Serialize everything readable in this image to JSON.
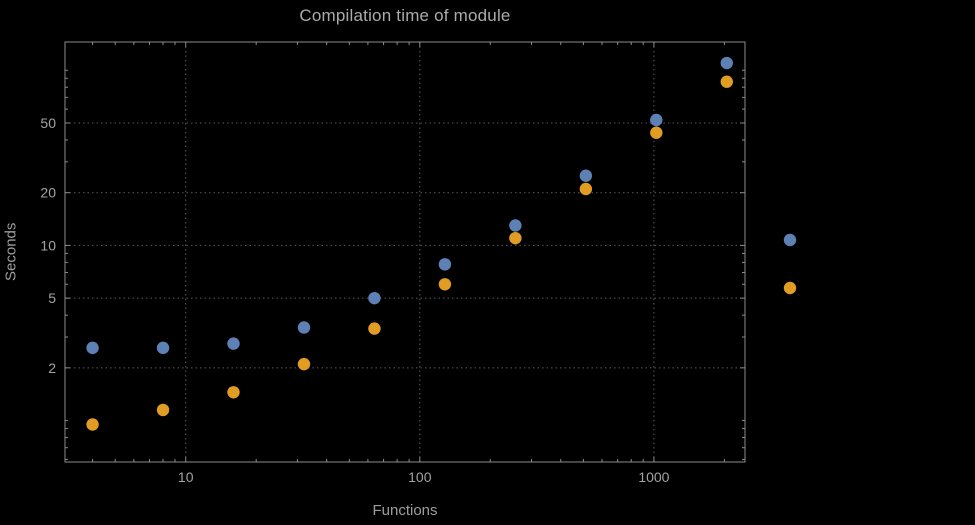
{
  "title": "Compilation time of module",
  "colors": {
    "background": "#000000",
    "frame": "#8c8c8c",
    "grid": "#5a5a5a",
    "tick_label": "#a3a3a3",
    "series_blue": "#5e81b5",
    "series_orange": "#e19c24"
  },
  "chart_data": {
    "type": "scatter",
    "title": "Compilation time of module",
    "xlabel": "Functions",
    "ylabel": "Seconds",
    "x_scale": "log",
    "y_scale": "log",
    "grid": true,
    "grid_style": "dotted",
    "xlim": [
      3.05,
      2450
    ],
    "ylim": [
      0.58,
      145
    ],
    "x": [
      4,
      8,
      16,
      32,
      64,
      128,
      256,
      512,
      1024,
      2048
    ],
    "series": [
      {
        "name": "blue",
        "color": "#5e81b5",
        "values": [
          2.6,
          2.6,
          2.75,
          3.4,
          5.0,
          7.8,
          13,
          25,
          52,
          110
        ]
      },
      {
        "name": "orange",
        "color": "#e19c24",
        "values": [
          0.95,
          1.15,
          1.45,
          2.1,
          3.35,
          6.0,
          11,
          21,
          44,
          86
        ]
      }
    ],
    "x_ticks": [
      {
        "value": 10,
        "label": "10"
      },
      {
        "value": 100,
        "label": "100"
      },
      {
        "value": 1000,
        "label": "1000"
      }
    ],
    "y_ticks": [
      {
        "value": 2,
        "label": "2"
      },
      {
        "value": 5,
        "label": "5"
      },
      {
        "value": 10,
        "label": "10"
      },
      {
        "value": 20,
        "label": "20"
      },
      {
        "value": 50,
        "label": "50"
      }
    ],
    "legend_position": "right",
    "legend": [
      {
        "name": "blue",
        "color": "#5e81b5",
        "label": ""
      },
      {
        "name": "orange",
        "color": "#e19c24",
        "label": ""
      }
    ]
  }
}
